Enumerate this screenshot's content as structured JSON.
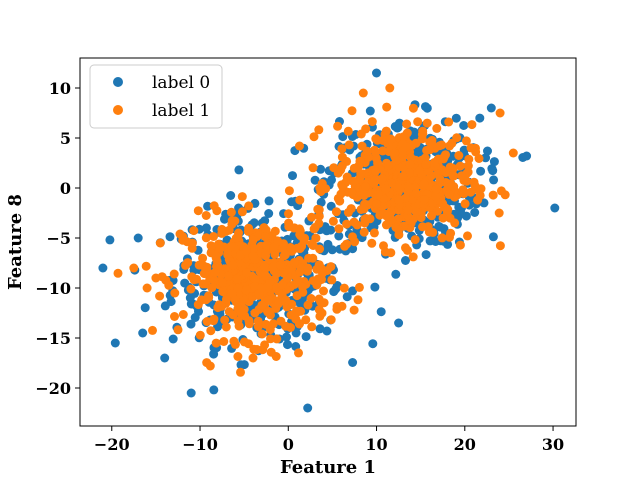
{
  "chart_data": {
    "type": "scatter",
    "xlabel": "Feature 1",
    "ylabel": "Feature 8",
    "xlim": [
      -23.6,
      32.6
    ],
    "ylim": [
      -23.8,
      13.0
    ],
    "xticks": [
      -20,
      -10,
      0,
      10,
      20,
      30
    ],
    "yticks": [
      -20,
      -15,
      -10,
      -5,
      0,
      5,
      10
    ],
    "xtick_labels": [
      "−20",
      "−10",
      "0",
      "10",
      "20",
      "30"
    ],
    "ytick_labels": [
      "−20",
      "−15",
      "−10",
      "−5",
      "0",
      "5",
      "10"
    ],
    "grid": false,
    "legend_position": "top-left",
    "colors": {
      "label0": "#1f77b4",
      "label1": "#ff7f0e"
    },
    "series": [
      {
        "name": "label 0",
        "color": "#1f77b4",
        "clusters": [
          {
            "center": [
              -3.5,
              -9.0
            ],
            "spread": [
              4.8,
              3.3
            ],
            "count": 420
          },
          {
            "center": [
              13.0,
              0.5
            ],
            "spread": [
              4.3,
              3.2
            ],
            "count": 420
          }
        ],
        "outliers": [
          [
            -21.0,
            -8.0
          ],
          [
            -19.6,
            -15.5
          ],
          [
            -11.0,
            -20.5
          ],
          [
            2.2,
            -22.0
          ],
          [
            30.2,
            -2.0
          ],
          [
            27.0,
            3.2
          ],
          [
            10.0,
            11.5
          ],
          [
            -14.0,
            -17.0
          ],
          [
            -16.5,
            -14.5
          ],
          [
            -17.0,
            -5.0
          ],
          [
            12.5,
            -13.5
          ],
          [
            23.0,
            8.0
          ]
        ]
      },
      {
        "name": "label 1",
        "color": "#ff7f0e",
        "clusters": [
          {
            "center": [
              -3.5,
              -9.0
            ],
            "spread": [
              4.2,
              3.0
            ],
            "count": 480
          },
          {
            "center": [
              13.0,
              0.5
            ],
            "spread": [
              3.9,
              2.9
            ],
            "count": 480
          }
        ],
        "outliers": [
          [
            -17.5,
            -8.0
          ],
          [
            -15.0,
            -9.0
          ],
          [
            -16.0,
            -10.0
          ],
          [
            -14.5,
            -5.5
          ],
          [
            25.5,
            3.5
          ],
          [
            24.0,
            7.5
          ],
          [
            -4.0,
            -17.0
          ],
          [
            8.5,
            9.5
          ],
          [
            11.5,
            10.0
          ]
        ]
      }
    ]
  }
}
